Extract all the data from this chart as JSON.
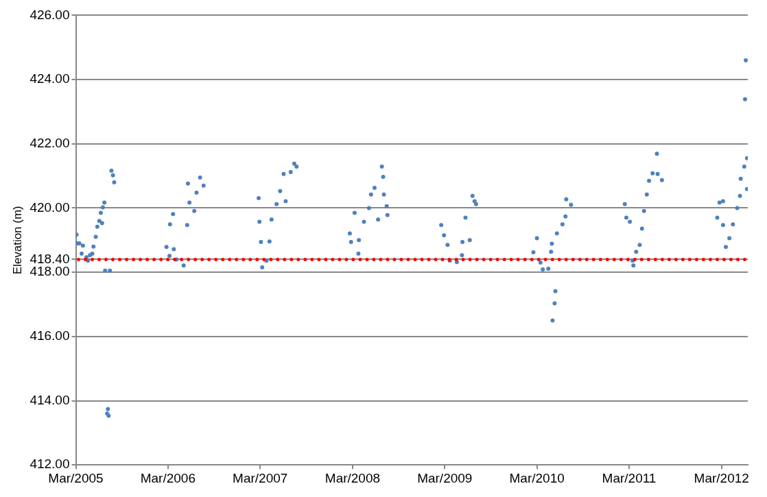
{
  "chart_data": {
    "type": "scatter",
    "ylabel": "Elevation (m)",
    "marker": "circle",
    "grid": "y",
    "legend": false,
    "xlim": [
      "2005-03-01",
      "2012-06-13"
    ],
    "xticks": [
      {
        "value": "2005-03-01",
        "label": "Mar/2005"
      },
      {
        "value": "2006-03-01",
        "label": "Mar/2006"
      },
      {
        "value": "2007-03-01",
        "label": "Mar/2007"
      },
      {
        "value": "2008-03-01",
        "label": "Mar/2008"
      },
      {
        "value": "2009-03-01",
        "label": "Mar/2009"
      },
      {
        "value": "2010-03-01",
        "label": "Mar/2010"
      },
      {
        "value": "2011-03-01",
        "label": "Mar/2011"
      },
      {
        "value": "2012-03-01",
        "label": "Mar/2012"
      }
    ],
    "ylim": [
      412,
      426
    ],
    "yticks": [
      {
        "value": 412,
        "label": "412.00"
      },
      {
        "value": 414,
        "label": "414.00"
      },
      {
        "value": 416,
        "label": "416.00"
      },
      {
        "value": 418,
        "label": "418.00"
      },
      {
        "value": 418.4,
        "label": "418.40"
      },
      {
        "value": 420,
        "label": "420.00"
      },
      {
        "value": 422,
        "label": "422.00"
      },
      {
        "value": 424,
        "label": "424.00"
      },
      {
        "value": 426,
        "label": "426.00"
      }
    ],
    "ref_lines": [
      {
        "axis": "y",
        "value": 418.4,
        "color": "#ff0000",
        "line_style": "dotted"
      }
    ],
    "series": [
      {
        "color": "#4f81bd",
        "x": [
          "2005-03-04",
          "2005-03-07",
          "2005-03-15",
          "2005-03-24",
          "2005-03-29",
          "2005-04-12",
          "2005-04-18",
          "2005-04-26",
          "2005-05-05",
          "2005-05-10",
          "2005-05-19",
          "2005-05-25",
          "2005-06-02",
          "2005-06-08",
          "2005-06-13",
          "2005-06-16",
          "2005-06-22",
          "2005-06-25",
          "2005-07-03",
          "2005-07-06",
          "2005-07-09",
          "2005-07-14",
          "2005-07-20",
          "2005-07-26",
          "2005-07-31",
          "2006-02-23",
          "2006-03-07",
          "2006-03-09",
          "2006-03-21",
          "2006-03-24",
          "2006-04-04",
          "2006-05-02",
          "2006-05-16",
          "2006-05-19",
          "2006-05-25",
          "2006-06-13",
          "2006-06-22",
          "2006-07-06",
          "2006-07-20",
          "2007-02-23",
          "2007-02-26",
          "2007-03-04",
          "2007-03-09",
          "2007-03-26",
          "2007-04-07",
          "2007-04-15",
          "2007-05-05",
          "2007-05-19",
          "2007-06-02",
          "2007-06-10",
          "2007-06-30",
          "2007-07-14",
          "2007-07-23",
          "2008-02-19",
          "2008-02-24",
          "2008-03-09",
          "2008-03-24",
          "2008-03-26",
          "2008-04-15",
          "2008-05-05",
          "2008-05-13",
          "2008-05-27",
          "2008-06-10",
          "2008-06-25",
          "2008-06-30",
          "2008-07-03",
          "2008-07-14",
          "2008-07-17",
          "2009-02-15",
          "2009-02-26",
          "2009-03-12",
          "2009-03-21",
          "2009-04-18",
          "2009-05-08",
          "2009-05-10",
          "2009-05-22",
          "2009-06-08",
          "2009-06-19",
          "2009-06-27",
          "2009-07-03",
          "2010-02-15",
          "2010-03-01",
          "2010-03-15",
          "2010-03-24",
          "2010-04-15",
          "2010-04-26",
          "2010-04-29",
          "2010-05-02",
          "2010-05-10",
          "2010-05-13",
          "2010-05-19",
          "2010-06-10",
          "2010-06-22",
          "2010-06-25",
          "2010-07-14",
          "2011-02-12",
          "2011-02-18",
          "2011-03-04",
          "2011-03-15",
          "2011-03-18",
          "2011-03-29",
          "2011-04-12",
          "2011-04-21",
          "2011-04-29",
          "2011-05-10",
          "2011-05-19",
          "2011-06-02",
          "2011-06-19",
          "2011-06-22",
          "2011-07-09",
          "2012-02-13",
          "2012-02-22",
          "2012-03-07",
          "2012-03-07",
          "2012-03-18",
          "2012-04-01",
          "2012-04-15",
          "2012-05-02",
          "2012-05-13",
          "2012-05-16",
          "2012-05-30",
          "2012-06-02",
          "2012-06-05",
          "2012-06-10",
          "2012-06-10"
        ],
        "values": [
          419.17,
          418.9,
          418.9,
          418.58,
          418.83,
          418.47,
          418.36,
          418.53,
          418.58,
          418.8,
          419.1,
          419.42,
          419.6,
          419.85,
          419.53,
          420.02,
          420.17,
          418.05,
          413.6,
          413.74,
          413.53,
          418.05,
          421.16,
          421.02,
          420.8,
          418.79,
          418.51,
          419.49,
          419.81,
          418.72,
          418.4,
          418.21,
          419.47,
          420.76,
          420.17,
          419.91,
          420.48,
          420.95,
          420.7,
          420.31,
          419.57,
          418.94,
          418.15,
          418.36,
          418.96,
          419.64,
          420.12,
          420.53,
          421.06,
          420.21,
          421.12,
          421.38,
          421.29,
          419.21,
          418.94,
          419.85,
          418.58,
          419.0,
          419.57,
          420.0,
          420.42,
          420.63,
          419.64,
          421.29,
          420.97,
          420.42,
          420.06,
          419.78,
          419.47,
          419.15,
          418.85,
          418.36,
          418.32,
          418.53,
          418.94,
          419.7,
          419.0,
          420.38,
          420.21,
          420.12,
          418.62,
          419.06,
          418.3,
          418.09,
          418.11,
          418.64,
          418.89,
          416.5,
          417.03,
          417.41,
          419.21,
          419.49,
          419.74,
          420.27,
          420.1,
          420.12,
          419.7,
          419.57,
          418.36,
          418.21,
          418.64,
          418.85,
          419.36,
          419.91,
          420.42,
          420.85,
          421.08,
          421.69,
          421.06,
          420.87,
          419.7,
          420.17,
          420.21,
          419.47,
          418.79,
          419.06,
          419.49,
          420.0,
          420.38,
          420.91,
          421.29,
          423.39,
          424.6,
          421.55,
          420.59
        ]
      }
    ]
  }
}
